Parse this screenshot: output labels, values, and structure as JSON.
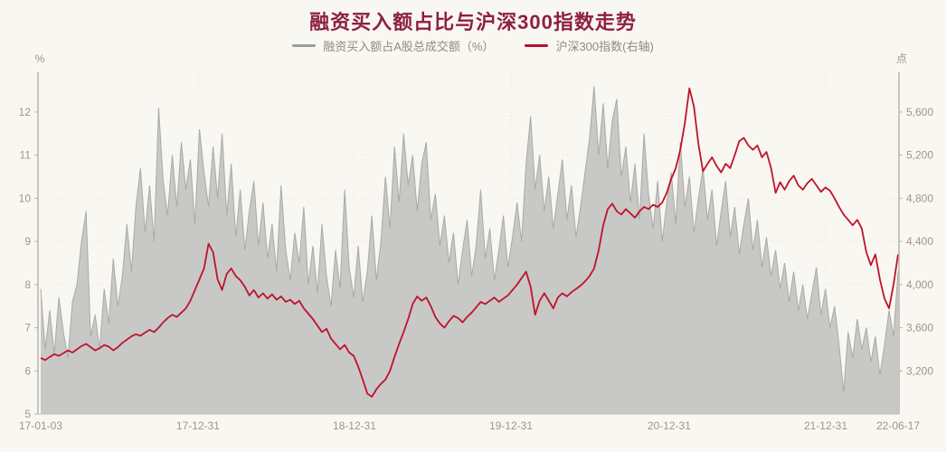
{
  "page": {
    "background": "#f9f7f1"
  },
  "chart_data": {
    "type": "area+line",
    "title": "融资买入额占比与沪深300指数走势",
    "title_color": "#8e2044",
    "legend_position": "top-center",
    "grid": {
      "gridline_color": "#e7e3da",
      "axis_color": "#b6b3ac",
      "label_color": "#9b978f",
      "baseline_color": "#c5c2bb",
      "gridline_style": "dotted"
    },
    "x_tick_labels": [
      "17-01-03",
      "17-12-31",
      "18-12-31",
      "19-12-31",
      "20-12-31",
      "21-12-31",
      "22-06-17"
    ],
    "x_tick_pos": [
      0,
      0.1835,
      0.366,
      0.5485,
      0.733,
      0.9156,
      1.0
    ],
    "left_axis": {
      "unit": "%",
      "min": 5,
      "max": 12.92,
      "ticks": [
        "5",
        "6",
        "7",
        "8",
        "9",
        "10",
        "11",
        "12"
      ],
      "tick_values": [
        5,
        6,
        7,
        8,
        9,
        10,
        11,
        12
      ]
    },
    "right_axis": {
      "unit": "点",
      "min": 2800,
      "max": 5968,
      "ticks": [
        "3,200",
        "3,600",
        "4,000",
        "4,400",
        "4,800",
        "5,200",
        "5,600"
      ],
      "tick_values": [
        3200,
        3600,
        4000,
        4400,
        4800,
        5200,
        5600
      ]
    },
    "series": [
      {
        "name": "融资买入额占A股总成交额（%）",
        "type": "area",
        "axis": "left",
        "fill_color": "#c8c8c6",
        "stroke_color": "#a9a9a7",
        "legend_swatch_color": "#9e9e9c",
        "values": [
          7.9,
          6.5,
          7.4,
          6.4,
          7.7,
          6.9,
          6.3,
          7.6,
          8.0,
          9.0,
          9.7,
          6.8,
          7.3,
          6.5,
          7.9,
          7.1,
          8.6,
          7.5,
          8.2,
          9.4,
          8.3,
          9.8,
          10.7,
          9.2,
          10.3,
          9.0,
          12.1,
          10.4,
          9.6,
          11.0,
          9.8,
          11.3,
          10.2,
          10.9,
          9.4,
          11.6,
          10.6,
          9.8,
          11.2,
          10.0,
          11.5,
          9.6,
          10.8,
          9.1,
          10.2,
          8.8,
          9.7,
          10.4,
          8.9,
          9.9,
          8.6,
          9.4,
          8.3,
          10.3,
          8.8,
          8.1,
          9.2,
          8.5,
          9.8,
          8.0,
          8.9,
          7.8,
          9.4,
          8.2,
          7.5,
          8.8,
          7.9,
          10.2,
          8.4,
          7.7,
          8.9,
          7.6,
          8.3,
          9.6,
          8.1,
          9.0,
          10.5,
          9.3,
          11.2,
          9.9,
          11.5,
          10.3,
          11.0,
          9.7,
          10.8,
          11.3,
          9.5,
          10.1,
          8.9,
          9.6,
          8.5,
          9.2,
          8.0,
          8.8,
          9.5,
          8.2,
          8.9,
          10.2,
          8.6,
          9.3,
          8.1,
          8.8,
          9.6,
          8.4,
          9.1,
          9.9,
          9.0,
          10.8,
          11.9,
          10.2,
          11.0,
          9.7,
          10.5,
          9.3,
          10.1,
          10.9,
          9.5,
          10.3,
          9.1,
          9.8,
          10.6,
          11.4,
          12.6,
          11.0,
          12.2,
          10.7,
          11.8,
          12.3,
          10.5,
          11.2,
          9.9,
          10.8,
          9.5,
          11.5,
          10.1,
          9.3,
          10.4,
          9.0,
          9.9,
          10.6,
          9.4,
          11.3,
          9.8,
          10.5,
          9.2,
          10.0,
          10.7,
          9.5,
          10.2,
          8.9,
          9.7,
          10.4,
          9.1,
          9.8,
          8.7,
          9.4,
          10.0,
          8.8,
          9.5,
          8.4,
          9.1,
          8.2,
          8.8,
          7.9,
          8.5,
          7.6,
          8.3,
          7.4,
          8.0,
          7.2,
          7.8,
          8.4,
          7.3,
          7.9,
          7.0,
          7.5,
          6.6,
          5.5,
          6.9,
          6.3,
          7.2,
          6.5,
          7.0,
          6.2,
          6.8,
          5.9,
          6.6,
          7.4,
          6.8,
          8.3
        ]
      },
      {
        "name": "沪深300指数(右轴)",
        "type": "line",
        "axis": "right",
        "stroke_color": "#c0122d",
        "legend_swatch_color": "#b31430",
        "values": [
          3320,
          3300,
          3330,
          3355,
          3340,
          3365,
          3390,
          3370,
          3400,
          3430,
          3450,
          3420,
          3390,
          3410,
          3440,
          3425,
          3390,
          3420,
          3460,
          3490,
          3520,
          3540,
          3525,
          3555,
          3580,
          3560,
          3600,
          3650,
          3690,
          3720,
          3700,
          3740,
          3780,
          3850,
          3950,
          4050,
          4150,
          4380,
          4300,
          4050,
          3950,
          4100,
          4150,
          4080,
          4040,
          3980,
          3900,
          3950,
          3880,
          3920,
          3870,
          3910,
          3860,
          3890,
          3840,
          3860,
          3820,
          3850,
          3780,
          3730,
          3680,
          3620,
          3560,
          3590,
          3500,
          3450,
          3400,
          3440,
          3370,
          3340,
          3240,
          3120,
          2990,
          2960,
          3030,
          3080,
          3120,
          3200,
          3330,
          3450,
          3560,
          3680,
          3820,
          3890,
          3850,
          3880,
          3800,
          3700,
          3640,
          3600,
          3660,
          3710,
          3690,
          3650,
          3700,
          3740,
          3790,
          3840,
          3820,
          3850,
          3880,
          3840,
          3870,
          3900,
          3950,
          4000,
          4060,
          4120,
          3980,
          3720,
          3850,
          3920,
          3850,
          3780,
          3880,
          3920,
          3890,
          3930,
          3960,
          3990,
          4030,
          4080,
          4150,
          4320,
          4550,
          4700,
          4750,
          4680,
          4650,
          4700,
          4660,
          4620,
          4680,
          4720,
          4700,
          4740,
          4720,
          4760,
          4850,
          4980,
          5080,
          5250,
          5500,
          5820,
          5650,
          5300,
          5050,
          5120,
          5180,
          5100,
          5040,
          5120,
          5080,
          5200,
          5330,
          5360,
          5290,
          5250,
          5290,
          5180,
          5230,
          5080,
          4850,
          4950,
          4880,
          4960,
          5010,
          4920,
          4880,
          4940,
          4980,
          4920,
          4860,
          4900,
          4870,
          4800,
          4720,
          4650,
          4600,
          4550,
          4600,
          4520,
          4300,
          4180,
          4280,
          4050,
          3870,
          3780,
          4000,
          4280
        ]
      }
    ]
  }
}
